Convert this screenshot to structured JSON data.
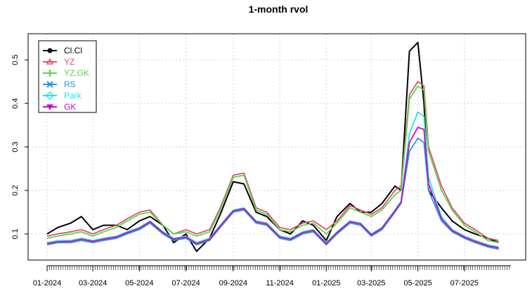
{
  "chart_data": {
    "type": "line",
    "title": "1-month rvol",
    "xlabel": "",
    "ylabel": "",
    "x_range": [
      "2024-01-01",
      "2025-08-31"
    ],
    "ylim": [
      0.04,
      0.56
    ],
    "grid": true,
    "legend_position": "top-left",
    "x_tick_labels": [
      {
        "date": "2024-01-01",
        "label": "01-2024"
      },
      {
        "date": "2024-03-01",
        "label": "03-2024"
      },
      {
        "date": "2024-05-01",
        "label": "05-2024"
      },
      {
        "date": "2024-07-01",
        "label": "07-2024"
      },
      {
        "date": "2024-09-01",
        "label": "09-2024"
      },
      {
        "date": "2024-11-01",
        "label": "11-2024"
      },
      {
        "date": "2025-01-01",
        "label": "01-2025"
      },
      {
        "date": "2025-03-01",
        "label": "03-2025"
      },
      {
        "date": "2025-05-01",
        "label": "05-2025"
      },
      {
        "date": "2025-07-01",
        "label": "07-2025"
      }
    ],
    "y_ticks": [
      0.1,
      0.2,
      0.3,
      0.4,
      0.5
    ],
    "y_tick_labels": [
      "0.1",
      "0.2",
      "0.3",
      "0.4",
      "0.5"
    ],
    "x": [
      "2024-01-01",
      "2024-01-15",
      "2024-02-01",
      "2024-02-15",
      "2024-03-01",
      "2024-03-15",
      "2024-04-01",
      "2024-04-15",
      "2024-05-01",
      "2024-05-15",
      "2024-06-01",
      "2024-06-15",
      "2024-07-01",
      "2024-07-15",
      "2024-08-01",
      "2024-08-15",
      "2024-09-01",
      "2024-09-15",
      "2024-10-01",
      "2024-10-15",
      "2024-11-01",
      "2024-11-15",
      "2024-12-01",
      "2024-12-15",
      "2025-01-01",
      "2025-01-15",
      "2025-02-01",
      "2025-02-15",
      "2025-03-01",
      "2025-03-15",
      "2025-04-01",
      "2025-04-09",
      "2025-04-20",
      "2025-05-01",
      "2025-05-09",
      "2025-05-15",
      "2025-06-01",
      "2025-06-15",
      "2025-07-01",
      "2025-07-15",
      "2025-08-01",
      "2025-08-15"
    ],
    "series": [
      {
        "name": "Cl.Cl",
        "color": "#000000",
        "marker": "circle",
        "values": [
          0.1,
          0.115,
          0.125,
          0.14,
          0.11,
          0.12,
          0.12,
          0.11,
          0.13,
          0.14,
          0.12,
          0.08,
          0.1,
          0.06,
          0.09,
          0.145,
          0.22,
          0.215,
          0.15,
          0.14,
          0.11,
          0.1,
          0.13,
          0.12,
          0.085,
          0.14,
          0.17,
          0.15,
          0.15,
          0.17,
          0.21,
          0.2,
          0.52,
          0.54,
          0.4,
          0.2,
          0.16,
          0.13,
          0.11,
          0.1,
          0.09,
          0.08
        ]
      },
      {
        "name": "YZ",
        "color": "#DF536B",
        "marker": "triangle",
        "values": [
          0.095,
          0.1,
          0.105,
          0.11,
          0.1,
          0.11,
          0.12,
          0.135,
          0.15,
          0.155,
          0.12,
          0.1,
          0.11,
          0.1,
          0.11,
          0.16,
          0.235,
          0.24,
          0.16,
          0.15,
          0.115,
          0.11,
          0.125,
          0.13,
          0.11,
          0.13,
          0.165,
          0.155,
          0.145,
          0.16,
          0.2,
          0.21,
          0.42,
          0.45,
          0.44,
          0.3,
          0.21,
          0.16,
          0.125,
          0.11,
          0.09,
          0.085
        ]
      },
      {
        "name": "YZ.GK",
        "color": "#61D04F",
        "marker": "plus",
        "values": [
          0.09,
          0.095,
          0.1,
          0.105,
          0.095,
          0.105,
          0.115,
          0.13,
          0.145,
          0.15,
          0.12,
          0.1,
          0.105,
          0.095,
          0.105,
          0.155,
          0.23,
          0.235,
          0.155,
          0.145,
          0.11,
          0.105,
          0.12,
          0.125,
          0.1,
          0.125,
          0.16,
          0.15,
          0.14,
          0.155,
          0.19,
          0.2,
          0.41,
          0.44,
          0.43,
          0.29,
          0.2,
          0.155,
          0.12,
          0.105,
          0.085,
          0.08
        ]
      },
      {
        "name": "RS",
        "color": "#2297E6",
        "marker": "cross",
        "values": [
          0.075,
          0.08,
          0.08,
          0.085,
          0.08,
          0.085,
          0.09,
          0.1,
          0.11,
          0.125,
          0.1,
          0.085,
          0.09,
          0.075,
          0.085,
          0.115,
          0.15,
          0.155,
          0.125,
          0.12,
          0.09,
          0.085,
          0.1,
          0.105,
          0.075,
          0.1,
          0.125,
          0.12,
          0.095,
          0.11,
          0.15,
          0.17,
          0.29,
          0.32,
          0.31,
          0.2,
          0.13,
          0.105,
          0.09,
          0.08,
          0.07,
          0.065
        ]
      },
      {
        "name": "Park",
        "color": "#28E2E5",
        "marker": "diamond",
        "values": [
          0.08,
          0.085,
          0.085,
          0.09,
          0.085,
          0.09,
          0.095,
          0.105,
          0.115,
          0.13,
          0.105,
          0.09,
          0.095,
          0.08,
          0.09,
          0.12,
          0.155,
          0.16,
          0.13,
          0.125,
          0.095,
          0.09,
          0.105,
          0.11,
          0.08,
          0.105,
          0.13,
          0.125,
          0.1,
          0.115,
          0.155,
          0.175,
          0.33,
          0.38,
          0.37,
          0.23,
          0.14,
          0.11,
          0.095,
          0.085,
          0.075,
          0.07
        ]
      },
      {
        "name": "GK",
        "color": "#CD0BBC",
        "marker": "triangle-down",
        "values": [
          0.078,
          0.082,
          0.083,
          0.088,
          0.083,
          0.088,
          0.093,
          0.103,
          0.113,
          0.128,
          0.103,
          0.088,
          0.093,
          0.078,
          0.088,
          0.118,
          0.153,
          0.158,
          0.128,
          0.123,
          0.093,
          0.088,
          0.103,
          0.108,
          0.078,
          0.103,
          0.128,
          0.123,
          0.098,
          0.113,
          0.153,
          0.173,
          0.31,
          0.345,
          0.34,
          0.215,
          0.135,
          0.108,
          0.093,
          0.083,
          0.073,
          0.068
        ]
      }
    ]
  }
}
